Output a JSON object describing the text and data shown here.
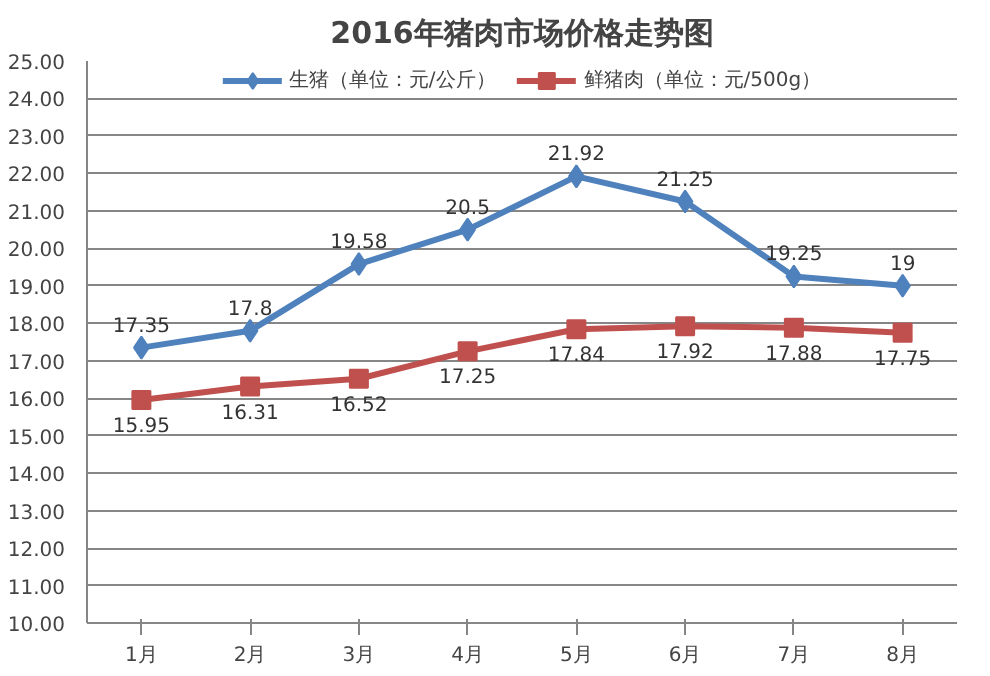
{
  "chart_data": {
    "type": "line",
    "title": "2016年猪肉市场价格走势图",
    "categories": [
      "1月",
      "2月",
      "3月",
      "4月",
      "5月",
      "6月",
      "7月",
      "8月"
    ],
    "series": [
      {
        "name": "生猪（单位：元/公斤）",
        "color": "#4f81bd",
        "marker": "diamond",
        "values": [
          17.35,
          17.8,
          19.58,
          20.5,
          21.92,
          21.25,
          19.25,
          19
        ]
      },
      {
        "name": "鲜猪肉（单位：元/500g）",
        "color": "#c0504d",
        "marker": "square",
        "values": [
          15.95,
          16.31,
          16.52,
          17.25,
          17.84,
          17.92,
          17.88,
          17.75
        ]
      }
    ],
    "ylim": [
      10,
      25
    ],
    "yticks": [
      {
        "value": 10,
        "label": "10.00"
      },
      {
        "value": 11,
        "label": "11.00"
      },
      {
        "value": 12,
        "label": "12.00"
      },
      {
        "value": 13,
        "label": "13.00"
      },
      {
        "value": 14,
        "label": "14.00"
      },
      {
        "value": 15,
        "label": "15.00"
      },
      {
        "value": 16,
        "label": "16.00"
      },
      {
        "value": 17,
        "label": "17.00"
      },
      {
        "value": 18,
        "label": "18.00"
      },
      {
        "value": 19,
        "label": "19.00"
      },
      {
        "value": 20,
        "label": "20.00"
      },
      {
        "value": 21,
        "label": "21.00"
      },
      {
        "value": 22,
        "label": "22.00"
      },
      {
        "value": 23,
        "label": "23.00"
      },
      {
        "value": 24,
        "label": "24.00"
      },
      {
        "value": 25,
        "label": "25.00"
      }
    ],
    "grid": "y",
    "legend": "top",
    "data_labels": true,
    "line_style": "solid"
  }
}
